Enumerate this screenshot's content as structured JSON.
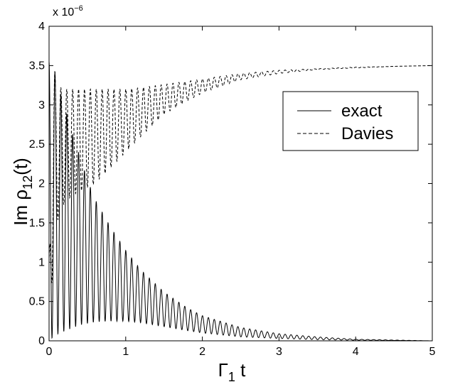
{
  "chart_data": {
    "type": "line",
    "xlabel": {
      "main": "Γ",
      "sub": "1",
      "tail": " t"
    },
    "ylabel": {
      "main": "Im ρ",
      "sub": "12",
      "tail": "(t)"
    },
    "y_multiplier": {
      "base": "x 10",
      "exp": "−6"
    },
    "xlim": [
      0,
      5
    ],
    "ylim": [
      0,
      4
    ],
    "x_ticks": [
      0,
      1,
      2,
      3,
      4,
      5
    ],
    "x_tick_labels": [
      "0",
      "1",
      "2",
      "3",
      "4",
      "5"
    ],
    "y_ticks": [
      0,
      0.5,
      1,
      1.5,
      2,
      2.5,
      3,
      3.5,
      4
    ],
    "y_tick_labels": [
      "0",
      "0.5",
      "1",
      "1.5",
      "2",
      "2.5",
      "3",
      "3.5",
      "4"
    ],
    "grid": false,
    "legend_position": "upper-right",
    "series": [
      {
        "name": "exact",
        "style": "solid",
        "color": "#000000",
        "oscillation_period": 0.077,
        "x": [
          0,
          0.06,
          0.1,
          0.2,
          0.3,
          0.4,
          0.5,
          0.6,
          0.8,
          1.0,
          1.2,
          1.5,
          1.8,
          2.0,
          2.5,
          3.0,
          3.5,
          4.0,
          4.5,
          5.0
        ],
        "upper": [
          3.55,
          3.5,
          3.3,
          3.0,
          2.65,
          2.35,
          2.05,
          1.8,
          1.45,
          1.15,
          0.9,
          0.62,
          0.42,
          0.32,
          0.17,
          0.09,
          0.05,
          0.02,
          0.01,
          0.0
        ],
        "lower": [
          0.0,
          0.05,
          0.08,
          0.12,
          0.16,
          0.2,
          0.22,
          0.24,
          0.25,
          0.25,
          0.23,
          0.18,
          0.13,
          0.1,
          0.05,
          0.03,
          0.015,
          0.008,
          0.004,
          0.0
        ]
      },
      {
        "name": "Davies",
        "style": "dashed",
        "color": "#000000",
        "oscillation_period": 0.077,
        "x": [
          0.0,
          0.06,
          0.1,
          0.2,
          0.3,
          0.4,
          0.5,
          0.6,
          0.8,
          1.0,
          1.2,
          1.5,
          1.8,
          2.0,
          2.5,
          3.0,
          3.5,
          4.0,
          4.5,
          5.0
        ],
        "upper": [
          1.0,
          3.55,
          3.25,
          3.2,
          3.2,
          3.2,
          3.2,
          3.2,
          3.2,
          3.2,
          3.22,
          3.26,
          3.3,
          3.33,
          3.4,
          3.44,
          3.46,
          3.48,
          3.49,
          3.5
        ],
        "lower": [
          0.0,
          1.2,
          1.5,
          1.75,
          1.85,
          1.9,
          1.95,
          2.0,
          2.2,
          2.4,
          2.6,
          2.88,
          3.05,
          3.15,
          3.32,
          3.4,
          3.45,
          3.47,
          3.49,
          3.5
        ]
      }
    ]
  }
}
